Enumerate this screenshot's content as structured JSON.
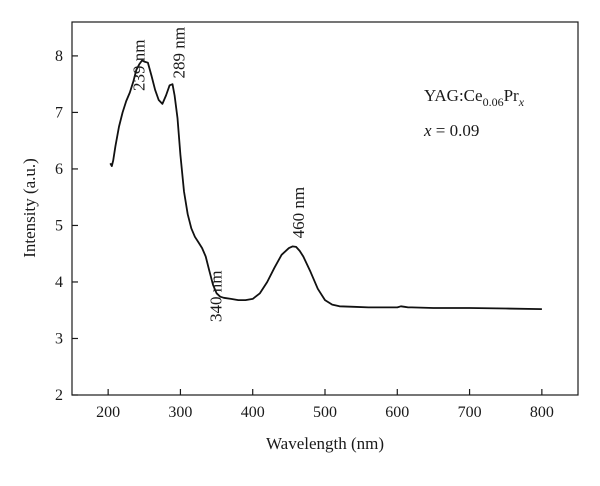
{
  "chart_data": {
    "type": "line",
    "xlabel": "Wavelength (nm)",
    "ylabel": "Intensity (a.u.)",
    "xlim": [
      150,
      850
    ],
    "ylim": [
      2,
      8.6
    ],
    "xticks": [
      200,
      300,
      400,
      500,
      600,
      700,
      800
    ],
    "yticks": [
      2,
      3,
      4,
      5,
      6,
      7,
      8
    ],
    "grid": false,
    "legend": {
      "sample_prefix": "YAG:Ce",
      "sample_ce_sub": "0.06",
      "sample_pr": "Pr",
      "sample_x_sub": "x",
      "x_var": "x",
      "x_eq": " = 0.09"
    },
    "annotations": [
      {
        "text": "239 nm",
        "x": 239,
        "y": 7.45
      },
      {
        "text": "289 nm",
        "x": 289,
        "y": 7.6
      },
      {
        "text": "340 nm",
        "x": 340,
        "y": 4.45
      },
      {
        "text": "460 nm",
        "x": 460,
        "y": 4.7
      }
    ],
    "series": [
      {
        "x": [
          203,
          205,
          207,
          210,
          215,
          220,
          225,
          230,
          235,
          239,
          243,
          247,
          250,
          255,
          260,
          265,
          270,
          275,
          280,
          285,
          289,
          292,
          296,
          300,
          305,
          310,
          315,
          320,
          325,
          330,
          335,
          340,
          345,
          350,
          355,
          360,
          370,
          380,
          390,
          400,
          410,
          420,
          430,
          440,
          450,
          455,
          460,
          465,
          470,
          480,
          490,
          500,
          510,
          520,
          540,
          560,
          580,
          600,
          605,
          610,
          615,
          620,
          650,
          700,
          750,
          800
        ],
        "y": [
          6.1,
          6.05,
          6.15,
          6.4,
          6.75,
          7.0,
          7.2,
          7.35,
          7.55,
          7.75,
          7.85,
          7.92,
          7.9,
          7.88,
          7.65,
          7.4,
          7.22,
          7.15,
          7.3,
          7.48,
          7.5,
          7.3,
          6.9,
          6.25,
          5.6,
          5.2,
          4.95,
          4.8,
          4.7,
          4.6,
          4.45,
          4.2,
          3.95,
          3.8,
          3.74,
          3.72,
          3.7,
          3.68,
          3.68,
          3.7,
          3.8,
          4.0,
          4.25,
          4.48,
          4.6,
          4.63,
          4.62,
          4.55,
          4.45,
          4.18,
          3.88,
          3.68,
          3.6,
          3.57,
          3.56,
          3.55,
          3.55,
          3.55,
          3.57,
          3.56,
          3.55,
          3.55,
          3.54,
          3.54,
          3.53,
          3.52
        ]
      }
    ]
  }
}
